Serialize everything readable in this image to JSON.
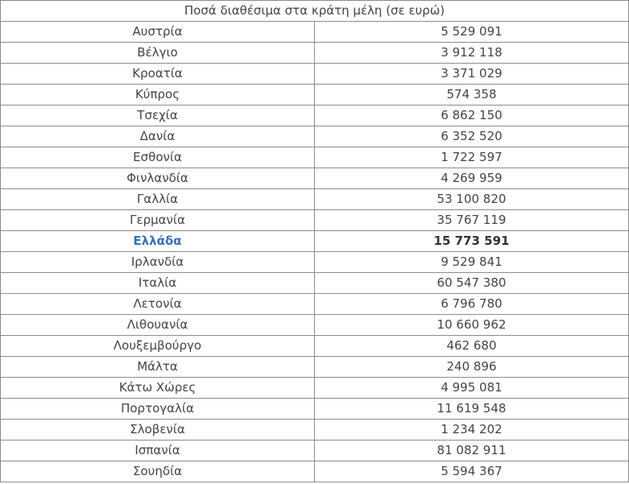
{
  "table": {
    "header": "Ποσά διαθέσιμα στα κράτη μέλη (σε ευρώ)",
    "rows": [
      {
        "country": "Αυστρία",
        "amount": "5 529 091"
      },
      {
        "country": "Βέλγιο",
        "amount": "3 912 118"
      },
      {
        "country": "Κροατία",
        "amount": "3 371 029"
      },
      {
        "country": "Κύπρος",
        "amount": "574 358"
      },
      {
        "country": "Τσεχία",
        "amount": "6 862 150"
      },
      {
        "country": "Δανία",
        "amount": "6 352 520"
      },
      {
        "country": "Εσθονία",
        "amount": "1 722 597"
      },
      {
        "country": "Φινλανδία",
        "amount": "4 269 959"
      },
      {
        "country": "Γαλλία",
        "amount": "53 100 820"
      },
      {
        "country": "Γερμανία",
        "amount": "35 767 119"
      },
      {
        "country": "Ελλάδα",
        "amount": "15 773 591",
        "highlight": true
      },
      {
        "country": "Ιρλανδία",
        "amount": "9 529 841"
      },
      {
        "country": "Ιταλία",
        "amount": "60 547 380"
      },
      {
        "country": "Λετονία",
        "amount": "6 796 780"
      },
      {
        "country": "Λιθουανία",
        "amount": "10 660 962"
      },
      {
        "country": "Λουξεμβούργο",
        "amount": "462 680"
      },
      {
        "country": "Μάλτα",
        "amount": "240 896"
      },
      {
        "country": "Κάτω Χώρες",
        "amount": "4 995 081"
      },
      {
        "country": "Πορτογαλία",
        "amount": "11 619 548"
      },
      {
        "country": "Σλοβενία",
        "amount": "1 234 202"
      },
      {
        "country": "Ισπανία",
        "amount": "81 082 911"
      },
      {
        "country": "Σουηδία",
        "amount": "5 594 367"
      }
    ]
  },
  "colors": {
    "highlight_text": "#3b6fb5",
    "border": "#8c8c8c",
    "text": "#444444"
  }
}
